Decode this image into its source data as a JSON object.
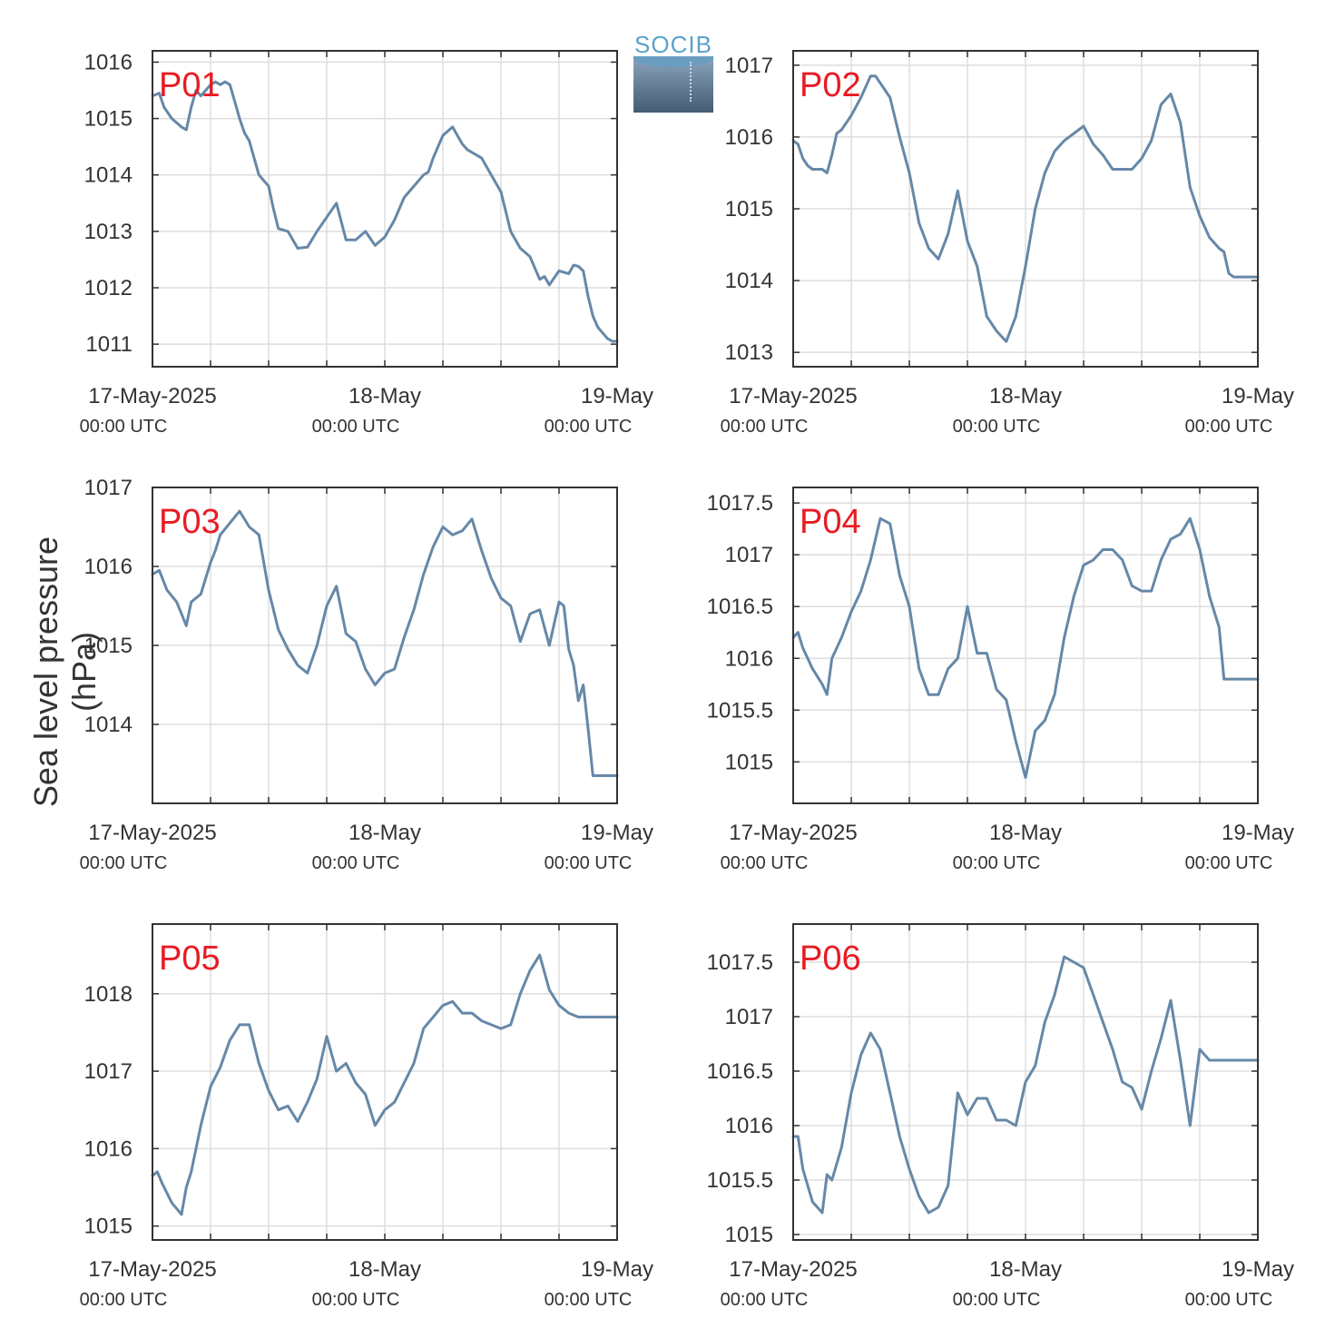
{
  "ylabel": "Sea level pressure (hPa)",
  "logo": {
    "text": "SOCIB"
  },
  "colors": {
    "line": "#6688a8",
    "title": "#e81b23",
    "grid": "#dddddd",
    "axis": "#333333",
    "tick": "#333333"
  },
  "xticks": [
    {
      "label": "17-May-2025",
      "sublabel": "00:00 UTC",
      "value": 0
    },
    {
      "label": "18-May",
      "sublabel": "00:00 UTC",
      "value": 24
    },
    {
      "label": "19-May",
      "sublabel": "00:00 UTC",
      "value": 48
    }
  ],
  "chart_data": [
    {
      "type": "line",
      "title": "P01",
      "xlim": [
        0,
        48
      ],
      "ylim": [
        1010.6,
        1016.2
      ],
      "yticks": [
        1011,
        1012,
        1013,
        1014,
        1015,
        1016
      ],
      "yticklabels": [
        "1011",
        "1012",
        "1013",
        "1014",
        "1015",
        "1016"
      ],
      "x": [
        0,
        0.7,
        1.2,
        2,
        3,
        3.5,
        4,
        4.5,
        5,
        5.5,
        6,
        6.5,
        7,
        7.5,
        8,
        8.5,
        9,
        9.5,
        10,
        11,
        12,
        12.5,
        13,
        14,
        15,
        16,
        17,
        18,
        19,
        20,
        21,
        22,
        23,
        24,
        25,
        26,
        27,
        28,
        28.5,
        29,
        30,
        31,
        32,
        32.5,
        33,
        34,
        35,
        36,
        37,
        37.5,
        38,
        39,
        40,
        40.5,
        41,
        42,
        43,
        43.5,
        44,
        44.5,
        45,
        45.5,
        46,
        46.5,
        47,
        47.5,
        48
      ],
      "values": [
        1015.4,
        1015.45,
        1015.2,
        1015.0,
        1014.85,
        1014.8,
        1015.2,
        1015.5,
        1015.4,
        1015.5,
        1015.6,
        1015.65,
        1015.6,
        1015.65,
        1015.6,
        1015.3,
        1015.0,
        1014.75,
        1014.6,
        1014.0,
        1013.8,
        1013.4,
        1013.05,
        1013.0,
        1012.7,
        1012.72,
        1013.0,
        1013.25,
        1013.5,
        1012.85,
        1012.85,
        1013.0,
        1012.75,
        1012.9,
        1013.2,
        1013.6,
        1013.8,
        1014.0,
        1014.05,
        1014.3,
        1014.7,
        1014.85,
        1014.55,
        1014.45,
        1014.4,
        1014.3,
        1014.0,
        1013.7,
        1013.0,
        1012.85,
        1012.7,
        1012.55,
        1012.15,
        1012.2,
        1012.05,
        1012.3,
        1012.25,
        1012.4,
        1012.38,
        1012.3,
        1011.85,
        1011.5,
        1011.3,
        1011.2,
        1011.1,
        1011.05,
        1011.05
      ]
    },
    {
      "type": "line",
      "title": "P02",
      "xlim": [
        0,
        48
      ],
      "ylim": [
        1012.8,
        1017.2
      ],
      "yticks": [
        1013,
        1014,
        1015,
        1016,
        1017
      ],
      "yticklabels": [
        "1013",
        "1014",
        "1015",
        "1016",
        "1017"
      ],
      "x": [
        0,
        0.5,
        1,
        1.5,
        2,
        3,
        3.5,
        4,
        4.5,
        5,
        6,
        7,
        8,
        8.5,
        9,
        10,
        11,
        12,
        13,
        14,
        15,
        16,
        17,
        18,
        19,
        20,
        21,
        22,
        23,
        24,
        25,
        26,
        27,
        28,
        29,
        30,
        31,
        32,
        33,
        34,
        35,
        36,
        37,
        38,
        39,
        40,
        41,
        42,
        43,
        44,
        44.5,
        45,
        45.5,
        46,
        46.5,
        47,
        47.5,
        48
      ],
      "values": [
        1015.95,
        1015.9,
        1015.7,
        1015.6,
        1015.55,
        1015.55,
        1015.5,
        1015.75,
        1016.05,
        1016.1,
        1016.3,
        1016.55,
        1016.85,
        1016.85,
        1016.75,
        1016.55,
        1016.0,
        1015.5,
        1014.8,
        1014.45,
        1014.3,
        1014.65,
        1015.25,
        1014.55,
        1014.2,
        1013.5,
        1013.3,
        1013.15,
        1013.5,
        1014.2,
        1015.0,
        1015.5,
        1015.8,
        1015.95,
        1016.05,
        1016.15,
        1015.9,
        1015.75,
        1015.55,
        1015.55,
        1015.55,
        1015.7,
        1015.95,
        1016.45,
        1016.6,
        1016.2,
        1015.3,
        1014.9,
        1014.6,
        1014.45,
        1014.4,
        1014.1,
        1014.05,
        1014.05,
        1014.05,
        1014.05,
        1014.05,
        1014.05
      ]
    },
    {
      "type": "line",
      "title": "P03",
      "xlim": [
        0,
        48
      ],
      "ylim": [
        1013.0,
        1017.0
      ],
      "yticks": [
        1014,
        1015,
        1016,
        1017
      ],
      "yticklabels": [
        "1014",
        "1015",
        "1016",
        "1017"
      ],
      "x": [
        0,
        0.7,
        1.5,
        2.5,
        3.5,
        4,
        5,
        6,
        6.5,
        7,
        8,
        9,
        10,
        11,
        12,
        13,
        14,
        15,
        16,
        17,
        18,
        19,
        20,
        21,
        22,
        23,
        24,
        25,
        26,
        27,
        28,
        29,
        30,
        31,
        32,
        33,
        34,
        35,
        36,
        37,
        38,
        39,
        40,
        41,
        42,
        42.5,
        43,
        43.5,
        44,
        44.5,
        45,
        45.5,
        46,
        46.5,
        47,
        47.5,
        48
      ],
      "values": [
        1015.9,
        1015.95,
        1015.7,
        1015.55,
        1015.25,
        1015.55,
        1015.65,
        1016.05,
        1016.2,
        1016.4,
        1016.55,
        1016.7,
        1016.5,
        1016.4,
        1015.7,
        1015.2,
        1014.95,
        1014.75,
        1014.65,
        1015.0,
        1015.5,
        1015.75,
        1015.15,
        1015.05,
        1014.7,
        1014.5,
        1014.65,
        1014.7,
        1015.1,
        1015.45,
        1015.9,
        1016.25,
        1016.5,
        1016.4,
        1016.45,
        1016.6,
        1016.2,
        1015.85,
        1015.6,
        1015.5,
        1015.05,
        1015.4,
        1015.45,
        1015.0,
        1015.55,
        1015.5,
        1014.95,
        1014.75,
        1014.3,
        1014.5,
        1013.95,
        1013.35,
        1013.35,
        1013.35,
        1013.35,
        1013.35,
        1013.35
      ]
    },
    {
      "type": "line",
      "title": "P04",
      "xlim": [
        0,
        48
      ],
      "ylim": [
        1014.6,
        1017.65
      ],
      "yticks": [
        1015,
        1015.5,
        1016,
        1016.5,
        1017,
        1017.5
      ],
      "yticklabels": [
        "1015",
        "1015.5",
        "1016",
        "1016.5",
        "1017",
        "1017.5"
      ],
      "x": [
        0,
        0.5,
        1,
        2,
        3,
        3.5,
        4,
        5,
        6,
        7,
        8,
        9,
        10,
        11,
        12,
        13,
        14,
        15,
        16,
        17,
        18,
        19,
        20,
        21,
        22,
        23,
        24,
        25,
        26,
        27,
        28,
        29,
        30,
        31,
        32,
        33,
        34,
        35,
        36,
        37,
        38,
        39,
        40,
        41,
        42,
        43,
        44,
        44.5,
        45,
        45.5,
        46,
        46.5,
        47,
        47.5,
        48
      ],
      "values": [
        1016.2,
        1016.25,
        1016.1,
        1015.9,
        1015.75,
        1015.65,
        1016.0,
        1016.2,
        1016.45,
        1016.65,
        1016.95,
        1017.35,
        1017.3,
        1016.8,
        1016.5,
        1015.9,
        1015.65,
        1015.65,
        1015.9,
        1016.0,
        1016.5,
        1016.05,
        1016.05,
        1015.7,
        1015.6,
        1015.2,
        1014.85,
        1015.3,
        1015.4,
        1015.65,
        1016.2,
        1016.6,
        1016.9,
        1016.95,
        1017.05,
        1017.05,
        1016.95,
        1016.7,
        1016.65,
        1016.65,
        1016.95,
        1017.15,
        1017.2,
        1017.35,
        1017.05,
        1016.6,
        1016.3,
        1015.8,
        1015.8,
        1015.8,
        1015.8,
        1015.8,
        1015.8,
        1015.8,
        1015.8
      ]
    },
    {
      "type": "line",
      "title": "P05",
      "xlim": [
        0,
        48
      ],
      "ylim": [
        1014.82,
        1018.9
      ],
      "yticks": [
        1015,
        1016,
        1017,
        1018
      ],
      "yticklabels": [
        "1015",
        "1016",
        "1017",
        "1018"
      ],
      "x": [
        0,
        0.5,
        1,
        2,
        3,
        3.5,
        4,
        5,
        6,
        7,
        8,
        9,
        10,
        11,
        12,
        13,
        14,
        15,
        16,
        17,
        18,
        19,
        20,
        21,
        22,
        23,
        24,
        25,
        26,
        27,
        28,
        29,
        30,
        31,
        32,
        33,
        34,
        35,
        36,
        37,
        38,
        39,
        40,
        41,
        42,
        43,
        44,
        44.5,
        45,
        45.5,
        46,
        46.5,
        47,
        47.5,
        48
      ],
      "values": [
        1015.65,
        1015.7,
        1015.55,
        1015.3,
        1015.15,
        1015.5,
        1015.7,
        1016.3,
        1016.8,
        1017.05,
        1017.4,
        1017.6,
        1017.6,
        1017.1,
        1016.75,
        1016.5,
        1016.55,
        1016.35,
        1016.6,
        1016.9,
        1017.45,
        1017.0,
        1017.1,
        1016.85,
        1016.7,
        1016.3,
        1016.5,
        1016.6,
        1016.85,
        1017.1,
        1017.55,
        1017.7,
        1017.85,
        1017.9,
        1017.75,
        1017.75,
        1017.65,
        1017.6,
        1017.55,
        1017.6,
        1018.0,
        1018.3,
        1018.5,
        1018.05,
        1017.85,
        1017.75,
        1017.7,
        1017.7,
        1017.7,
        1017.7,
        1017.7,
        1017.7,
        1017.7,
        1017.7,
        1017.7
      ]
    },
    {
      "type": "line",
      "title": "P06",
      "xlim": [
        0,
        48
      ],
      "ylim": [
        1014.95,
        1017.85
      ],
      "yticks": [
        1015,
        1015.5,
        1016,
        1016.5,
        1017,
        1017.5
      ],
      "yticklabels": [
        "1015",
        "1015.5",
        "1016",
        "1016.5",
        "1017",
        "1017.5"
      ],
      "x": [
        0,
        0.5,
        1,
        2,
        3,
        3.5,
        4,
        5,
        6,
        7,
        8,
        9,
        10,
        11,
        12,
        13,
        14,
        15,
        16,
        17,
        18,
        19,
        20,
        21,
        22,
        23,
        24,
        25,
        26,
        27,
        28,
        29,
        30,
        31,
        32,
        33,
        34,
        35,
        36,
        37,
        38,
        39,
        40,
        41,
        42,
        43,
        44,
        44.5,
        45,
        45.5,
        46,
        46.5,
        47,
        47.5,
        48
      ],
      "values": [
        1015.9,
        1015.9,
        1015.6,
        1015.3,
        1015.2,
        1015.55,
        1015.5,
        1015.8,
        1016.3,
        1016.65,
        1016.85,
        1016.7,
        1016.3,
        1015.9,
        1015.6,
        1015.35,
        1015.2,
        1015.25,
        1015.45,
        1016.3,
        1016.1,
        1016.25,
        1016.25,
        1016.05,
        1016.05,
        1016.0,
        1016.4,
        1016.55,
        1016.95,
        1017.2,
        1017.55,
        1017.5,
        1017.45,
        1017.2,
        1016.95,
        1016.7,
        1016.4,
        1016.35,
        1016.15,
        1016.5,
        1016.8,
        1017.15,
        1016.6,
        1016.0,
        1016.7,
        1016.6,
        1016.6,
        1016.6,
        1016.6,
        1016.6,
        1016.6,
        1016.6,
        1016.6,
        1016.6,
        1016.6
      ]
    }
  ]
}
